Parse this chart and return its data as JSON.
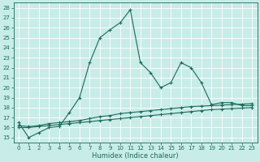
{
  "xlabel": "Humidex (Indice chaleur)",
  "bg_color": "#c8ece8",
  "grid_color": "#ffffff",
  "line_color": "#1a6b5a",
  "xlim": [
    -0.5,
    23.5
  ],
  "ylim": [
    14.5,
    28.5
  ],
  "yticks": [
    15,
    16,
    17,
    18,
    19,
    20,
    21,
    22,
    23,
    24,
    25,
    26,
    27,
    28
  ],
  "xticks": [
    0,
    1,
    2,
    3,
    4,
    5,
    6,
    7,
    8,
    9,
    10,
    11,
    12,
    13,
    14,
    15,
    16,
    17,
    18,
    19,
    20,
    21,
    22,
    23
  ],
  "xtick_labels": [
    "0",
    "1",
    "2",
    "3",
    "4",
    "5",
    "6",
    "7",
    "8",
    "9",
    "10",
    "11",
    "12",
    "13",
    "14",
    "15",
    "16",
    "17",
    "18",
    "19",
    "20",
    "21",
    "22",
    "23"
  ],
  "series1_x": [
    0,
    1,
    2,
    3,
    4,
    5,
    6,
    7,
    8,
    9,
    10,
    11,
    12,
    13,
    14,
    15,
    16,
    17,
    18,
    19,
    20,
    21,
    22,
    23
  ],
  "series1_y": [
    16.5,
    15.0,
    15.5,
    16.0,
    16.1,
    17.5,
    19.0,
    22.5,
    25.0,
    25.8,
    26.5,
    27.8,
    22.5,
    21.5,
    20.0,
    20.5,
    22.5,
    22.0,
    20.5,
    18.3,
    18.5,
    18.5,
    18.2,
    18.2
  ],
  "series2_x": [
    0,
    1,
    2,
    3,
    4,
    5,
    6,
    7,
    8,
    9,
    10,
    11,
    12,
    13,
    14,
    15,
    16,
    17,
    18,
    19,
    20,
    21,
    22,
    23
  ],
  "series2_y": [
    16.2,
    16.1,
    16.2,
    16.4,
    16.5,
    16.6,
    16.7,
    16.9,
    17.1,
    17.2,
    17.4,
    17.5,
    17.6,
    17.7,
    17.8,
    17.9,
    18.0,
    18.1,
    18.15,
    18.2,
    18.25,
    18.3,
    18.35,
    18.4
  ],
  "series3_x": [
    0,
    1,
    2,
    3,
    4,
    5,
    6,
    7,
    8,
    9,
    10,
    11,
    12,
    13,
    14,
    15,
    16,
    17,
    18,
    19,
    20,
    21,
    22,
    23
  ],
  "series3_y": [
    16.0,
    16.0,
    16.1,
    16.2,
    16.3,
    16.4,
    16.5,
    16.6,
    16.7,
    16.8,
    16.9,
    17.0,
    17.1,
    17.2,
    17.3,
    17.4,
    17.5,
    17.6,
    17.7,
    17.8,
    17.85,
    17.9,
    17.95,
    18.0
  ],
  "tick_fontsize": 5,
  "xlabel_fontsize": 6,
  "marker_size": 2.5,
  "line_width": 0.8
}
